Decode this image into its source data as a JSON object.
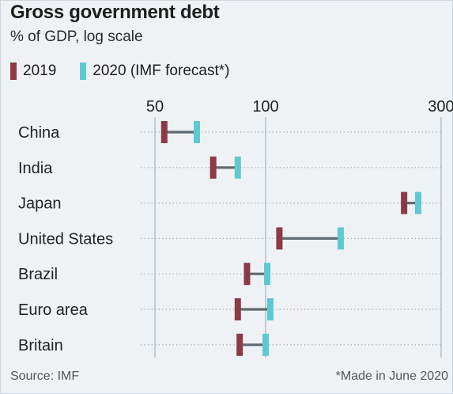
{
  "header": {
    "title": "Gross government debt",
    "subtitle": "% of GDP, log scale"
  },
  "legend": {
    "items": [
      {
        "label": "2019",
        "color": "#8c3a46"
      },
      {
        "label": "2020 (IMF forecast*)",
        "color": "#5ec9d3"
      }
    ]
  },
  "footer": {
    "source": "Source: IMF",
    "note": "*Made in June 2020"
  },
  "chart_data": {
    "type": "dumbbell",
    "title": "Gross government debt",
    "subtitle": "% of GDP, log scale",
    "x_scale": "log",
    "xlim": [
      50,
      300
    ],
    "x_ticks": [
      50,
      100,
      300
    ],
    "x_tick_labels": [
      "50",
      "100",
      "300"
    ],
    "grid": true,
    "legend_position": "top-left",
    "categories": [
      "China",
      "India",
      "Japan",
      "United States",
      "Brazil",
      "Euro area",
      "Britain"
    ],
    "series": [
      {
        "name": "2019",
        "color": "#8c3a46",
        "values": [
          53,
          72,
          238,
          109,
          89,
          84,
          85
        ]
      },
      {
        "name": "2020 (IMF forecast*)",
        "color": "#5ec9d3",
        "values": [
          65,
          84,
          260,
          160,
          101,
          103,
          100
        ]
      }
    ],
    "connector_color": "#5f6a70"
  }
}
